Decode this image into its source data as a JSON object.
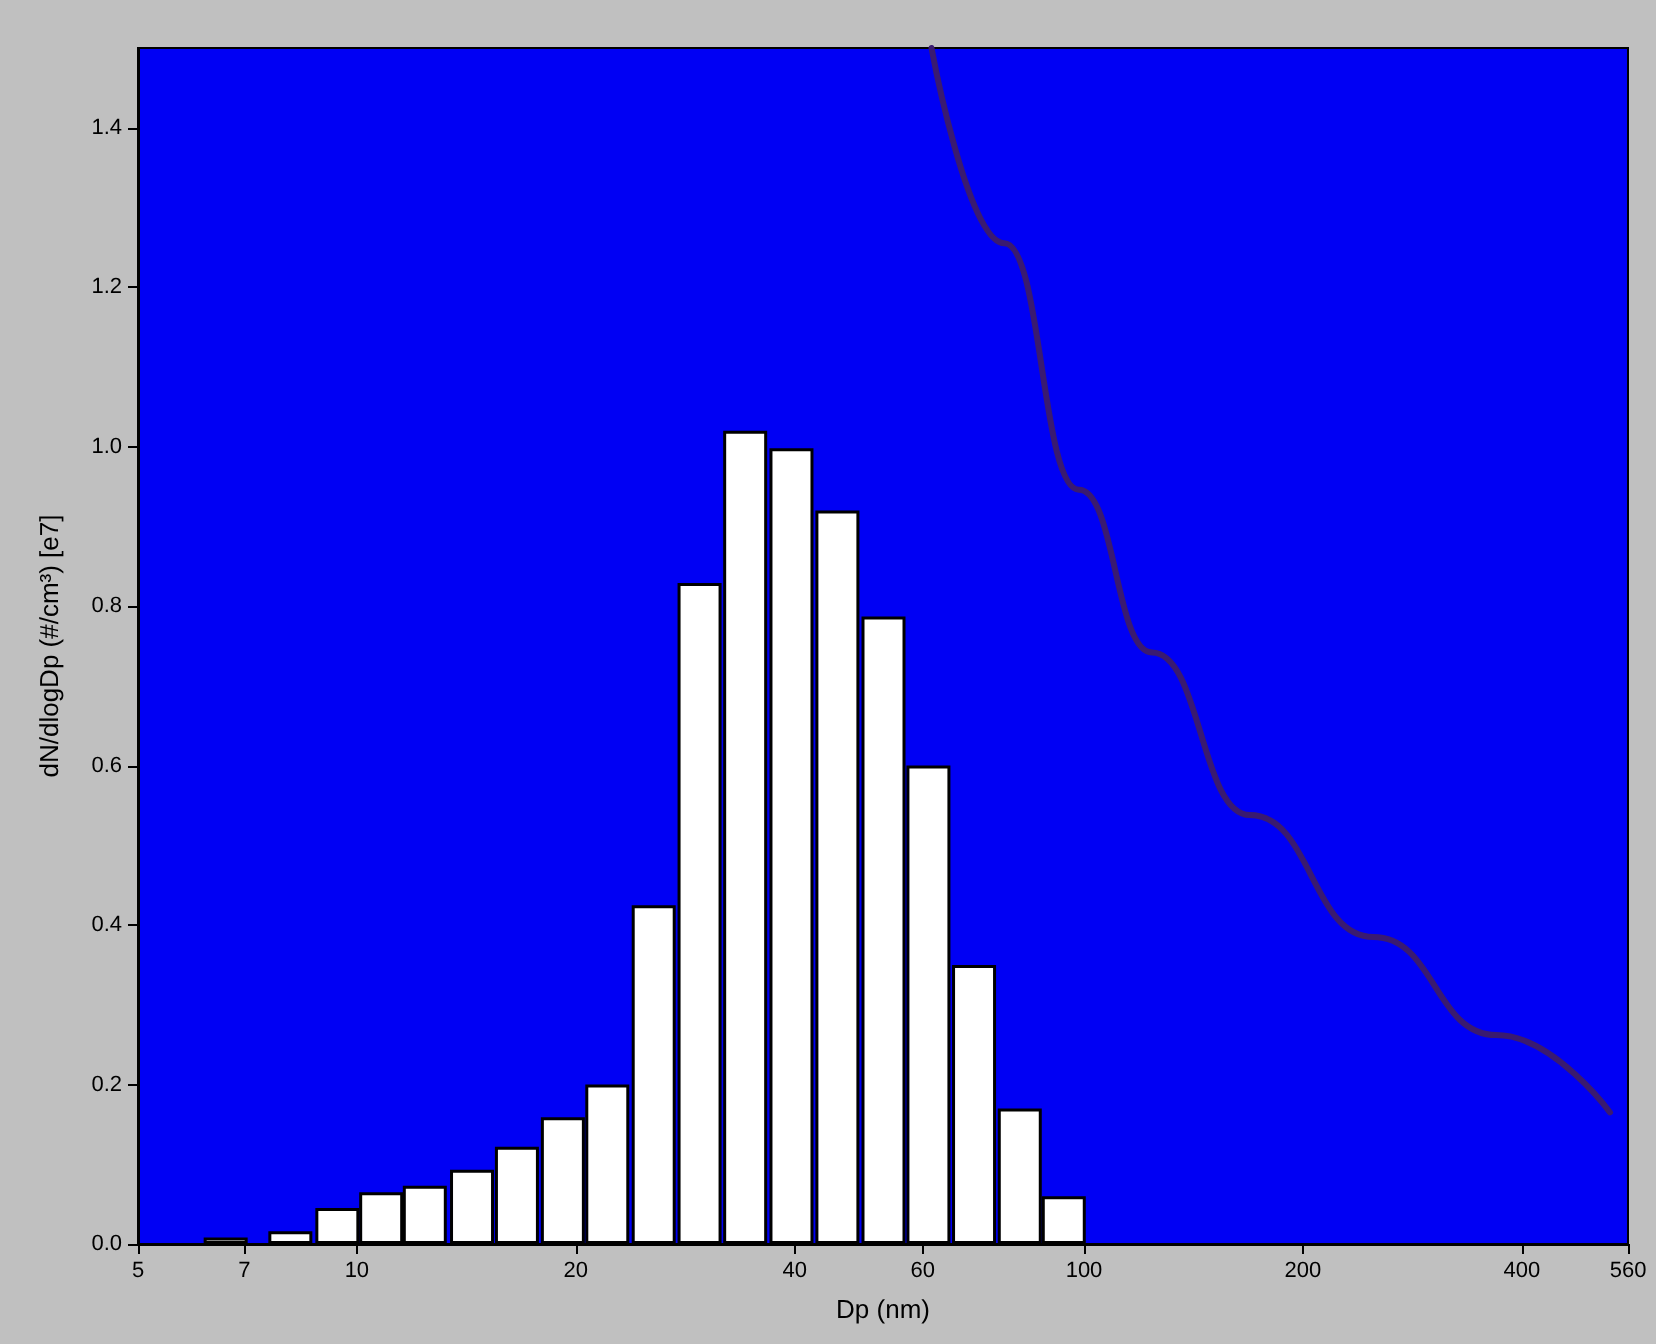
{
  "chart_data": {
    "type": "bar",
    "xlabel": "Dp (nm)",
    "ylabel": "dN/dlogDp (#/cm³) [e7]",
    "log": "x",
    "xlim": [
      5,
      560
    ],
    "xticks": [
      5,
      7,
      10,
      20,
      40,
      60,
      100,
      200,
      400,
      560
    ],
    "ylim": [
      0,
      1.5
    ],
    "yticks": [
      {
        "value": 0,
        "label": "0.0"
      },
      0.2,
      0.4,
      0.6,
      0.8,
      {
        "value": 1,
        "label": "1.0"
      },
      1.2,
      1.4
    ],
    "marker": "none",
    "series": [
      {
        "color": "#ffffff",
        "x": [
          6.6,
          8.1,
          9.4,
          10.8,
          12.4,
          14.4,
          16.6,
          19.2,
          22.1,
          25.6,
          29.6,
          34.2,
          39.6,
          45.8,
          53,
          61.1,
          70.6,
          81.6,
          93.8
        ],
        "values": [
          0.008,
          0.016,
          0.045,
          0.065,
          0.073,
          0.093,
          0.122,
          0.159,
          0.2,
          0.425,
          0.829,
          1.02,
          0.998,
          0.92,
          0.787,
          0.6,
          0.35,
          0.17,
          0.06
        ]
      },
      {
        "type": "line",
        "color": "#3a1a70",
        "x": [
          61.7,
          77.7,
          98.4,
          124,
          169,
          250,
          369,
          529
        ],
        "values": [
          1.5,
          1.255,
          0.946,
          0.742,
          0.538,
          0.385,
          0.262,
          0.165
        ]
      }
    ]
  }
}
